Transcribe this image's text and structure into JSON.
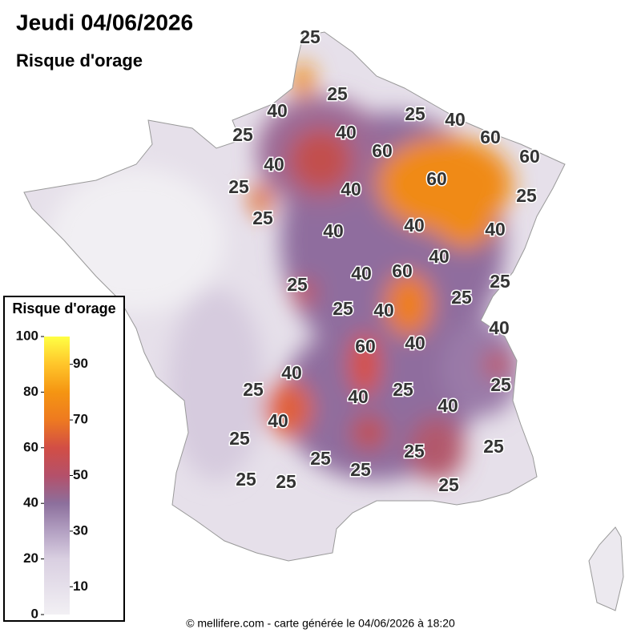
{
  "header": {
    "title": "Jeudi 04/06/2026",
    "subtitle": "Risque d'orage"
  },
  "legend": {
    "title": "Risque d'orage",
    "scale": [
      0,
      100
    ],
    "left_ticks": [
      0,
      20,
      40,
      60,
      80,
      100
    ],
    "right_ticks": [
      10,
      30,
      50,
      70,
      90
    ]
  },
  "contour_labels": [
    25,
    25,
    40,
    25,
    40,
    25,
    40,
    60,
    60,
    60,
    40,
    25,
    40,
    60,
    25,
    25,
    40,
    40,
    40,
    40,
    40,
    60,
    25,
    25,
    25,
    40,
    25,
    40,
    60,
    40,
    40,
    25,
    25,
    25,
    40,
    40,
    40,
    25,
    25,
    25,
    25,
    25,
    25,
    25,
    25
  ],
  "footer": "© mellifere.com - carte générée le 04/06/2026 à 18:20"
}
